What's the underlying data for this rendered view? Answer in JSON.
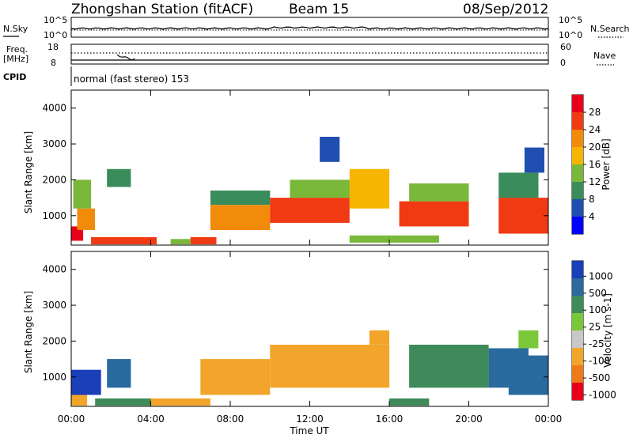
{
  "header": {
    "station": "Zhongshan Station (fitACF)",
    "beam": "Beam 15",
    "date": "08/Sep/2012"
  },
  "noise_panel": {
    "left_label": "N.Sky",
    "right_label": "N.Search",
    "left_ticks": [
      "10^5",
      "10^0"
    ],
    "right_ticks": [
      "10^5",
      "10^0"
    ]
  },
  "freq_panel": {
    "left_label_1": "Freq.",
    "left_label_2": "[MHz]",
    "right_label": "Nave",
    "left_ticks": [
      "18",
      "8"
    ],
    "right_ticks": [
      "60",
      "0"
    ]
  },
  "cpid_panel": {
    "label": "CPID",
    "text": "normal (fast stereo) 153"
  },
  "xaxis": {
    "title": "Time UT",
    "ticks": [
      "00:00",
      "04:00",
      "08:00",
      "12:00",
      "16:00",
      "20:00",
      "00:00"
    ]
  },
  "chart_data": [
    {
      "type": "heatmap",
      "name": "power",
      "ylabel": "Slant Range [km]",
      "yticks": [
        "1000",
        "2000",
        "3000",
        "4000"
      ],
      "ylim": [
        180,
        4500
      ],
      "xlim_hours": [
        0,
        24
      ],
      "colorbar_label": "Power [dB]",
      "colorbar_ticks": [
        "4",
        "8",
        "12",
        "16",
        "20",
        "24",
        "28"
      ],
      "colors": [
        "#0000ff",
        "#1f4fb0",
        "#3a8c5a",
        "#7ab83a",
        "#f7b500",
        "#f28a0a",
        "#ef3a14",
        "#e8001a"
      ],
      "cells": [
        {
          "t": 0.0,
          "t2": 0.6,
          "r": 300,
          "r2": 700,
          "v": 28
        },
        {
          "t": 0.3,
          "t2": 1.2,
          "r": 600,
          "r2": 1200,
          "v": 22
        },
        {
          "t": 0.1,
          "t2": 1.0,
          "r": 1200,
          "r2": 2000,
          "v": 12
        },
        {
          "t": 1.0,
          "t2": 4.3,
          "r": 200,
          "r2": 400,
          "v": 24
        },
        {
          "t": 1.8,
          "t2": 3.0,
          "r": 1800,
          "r2": 2300,
          "v": 8
        },
        {
          "t": 5.0,
          "t2": 6.0,
          "r": 200,
          "r2": 350,
          "v": 12
        },
        {
          "t": 6.0,
          "t2": 7.3,
          "r": 200,
          "r2": 400,
          "v": 24
        },
        {
          "t": 7.0,
          "t2": 10.0,
          "r": 600,
          "r2": 1300,
          "v": 20
        },
        {
          "t": 7.0,
          "t2": 10.0,
          "r": 1300,
          "r2": 1700,
          "v": 10
        },
        {
          "t": 10.0,
          "t2": 14.0,
          "r": 800,
          "r2": 1500,
          "v": 24
        },
        {
          "t": 11.0,
          "t2": 14.5,
          "r": 1500,
          "r2": 2000,
          "v": 14
        },
        {
          "t": 14.0,
          "t2": 16.0,
          "r": 1200,
          "r2": 2300,
          "v": 18
        },
        {
          "t": 12.5,
          "t2": 13.5,
          "r": 2500,
          "r2": 3200,
          "v": 6
        },
        {
          "t": 14.0,
          "t2": 18.5,
          "r": 250,
          "r2": 450,
          "v": 12
        },
        {
          "t": 16.5,
          "t2": 20.0,
          "r": 700,
          "r2": 1400,
          "v": 24
        },
        {
          "t": 17.0,
          "t2": 20.0,
          "r": 1400,
          "r2": 1900,
          "v": 12
        },
        {
          "t": 21.5,
          "t2": 24.0,
          "r": 500,
          "r2": 1500,
          "v": 26
        },
        {
          "t": 21.5,
          "t2": 23.5,
          "r": 1500,
          "r2": 2200,
          "v": 10
        },
        {
          "t": 22.8,
          "t2": 23.8,
          "r": 2200,
          "r2": 2900,
          "v": 6
        }
      ]
    },
    {
      "type": "heatmap",
      "name": "velocity",
      "ylabel": "Slant Range [km]",
      "yticks": [
        "1000",
        "2000",
        "3000",
        "4000"
      ],
      "ylim": [
        180,
        4500
      ],
      "xlim_hours": [
        0,
        24
      ],
      "colorbar_label": "Velocity [m s-1]",
      "colorbar_ticks": [
        "1000",
        "500",
        "100",
        "25",
        "-25",
        "-100",
        "-500",
        "-1000"
      ],
      "colors": [
        "#1a3fb8",
        "#2a6a9e",
        "#3f8a5a",
        "#7ac83a",
        "#c8c8c8",
        "#f2a52a",
        "#ef7a1a",
        "#e8001a"
      ],
      "cells": [
        {
          "t": 0.0,
          "t2": 1.5,
          "r": 500,
          "r2": 1200,
          "v": 700
        },
        {
          "t": 0.0,
          "t2": 0.8,
          "r": 200,
          "r2": 500,
          "v": -300
        },
        {
          "t": 1.2,
          "t2": 4.0,
          "r": 200,
          "r2": 400,
          "v": 60
        },
        {
          "t": 1.8,
          "t2": 3.0,
          "r": 700,
          "r2": 1500,
          "v": 300
        },
        {
          "t": 4.0,
          "t2": 7.0,
          "r": 200,
          "r2": 400,
          "v": -300
        },
        {
          "t": 6.5,
          "t2": 10.0,
          "r": 500,
          "r2": 1500,
          "v": -300
        },
        {
          "t": 10.0,
          "t2": 16.0,
          "r": 700,
          "r2": 1900,
          "v": -200
        },
        {
          "t": 15.0,
          "t2": 16.0,
          "r": 1900,
          "r2": 2300,
          "v": -200
        },
        {
          "t": 16.0,
          "t2": 18.0,
          "r": 200,
          "r2": 400,
          "v": 60
        },
        {
          "t": 17.0,
          "t2": 21.0,
          "r": 700,
          "r2": 1900,
          "v": 60
        },
        {
          "t": 21.0,
          "t2": 23.0,
          "r": 700,
          "r2": 1800,
          "v": 300
        },
        {
          "t": 22.0,
          "t2": 24.0,
          "r": 500,
          "r2": 1600,
          "v": 300
        },
        {
          "t": 22.5,
          "t2": 23.5,
          "r": 1800,
          "r2": 2300,
          "v": 0
        }
      ]
    }
  ]
}
